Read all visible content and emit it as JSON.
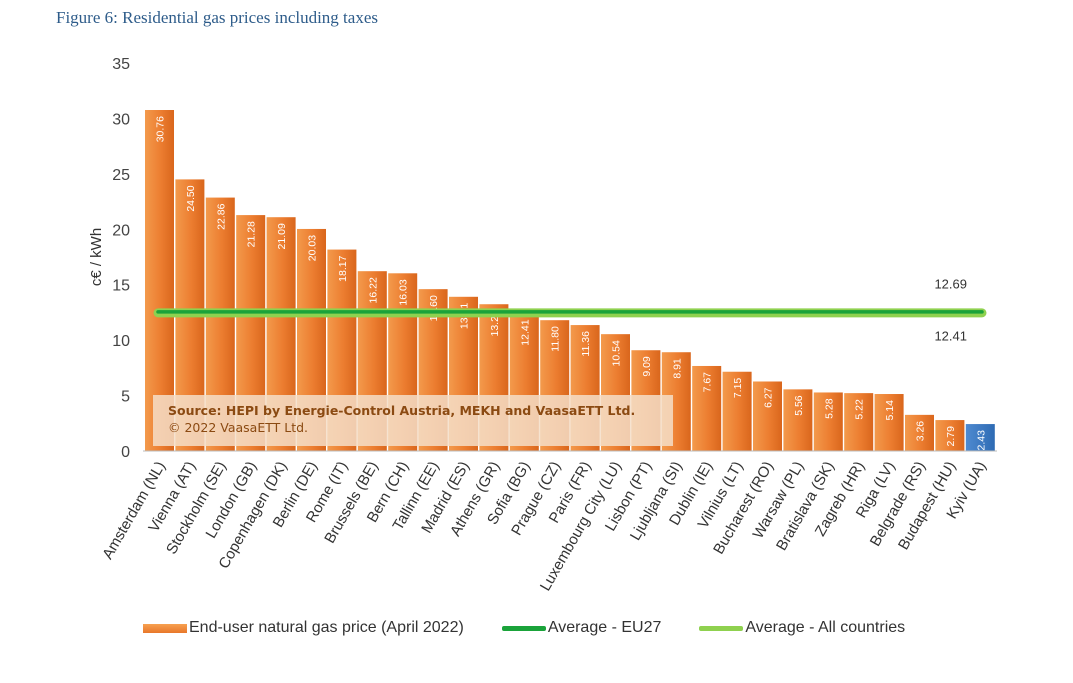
{
  "figure": {
    "title": "Figure 6: Residential gas prices including taxes",
    "source_line1": "Source: HEPI by Energie-Control Austria, MEKH and VaasaETT Ltd.",
    "source_line2": "© 2022 VaasaETT Ltd."
  },
  "colors": {
    "bar": "#ec7d30",
    "bar_highlight": "#2e6bb4",
    "avg_eu27": "#1aa33a",
    "avg_all": "#8fd14f"
  },
  "chart_data": {
    "type": "bar",
    "title": "",
    "xlabel": "",
    "ylabel": "c€ / kWh",
    "ylim": [
      0,
      35
    ],
    "yticks": [
      "0",
      "5",
      "10",
      "15",
      "20",
      "25",
      "30",
      "35"
    ],
    "grid": false,
    "categories": [
      "Amsterdam (NL)",
      "Vienna (AT)",
      "Stockholm (SE)",
      "London (GB)",
      "Copenhagen (DK)",
      "Berlin (DE)",
      "Rome (IT)",
      "Brussels (BE)",
      "Bern (CH)",
      "Tallinn (EE)",
      "Madrid (ES)",
      "Athens (GR)",
      "Sofia (BG)",
      "Prague (CZ)",
      "Paris (FR)",
      "Luxembourg City (LU)",
      "Lisbon (PT)",
      "Ljubljana (SI)",
      "Dublin (IE)",
      "Vilnius (LT)",
      "Bucharest (RO)",
      "Warsaw (PL)",
      "Bratislava (SK)",
      "Zagreb (HR)",
      "Riga (LV)",
      "Belgrade (RS)",
      "Budapest (HU)",
      "Kyiv (UA)"
    ],
    "series": [
      {
        "name": "End-user natural gas price (April 2022)",
        "values": [
          30.76,
          24.5,
          22.86,
          21.28,
          21.09,
          20.03,
          18.17,
          16.22,
          16.03,
          14.6,
          13.91,
          13.24,
          12.41,
          11.8,
          11.36,
          10.54,
          9.09,
          8.91,
          7.67,
          7.15,
          6.27,
          5.56,
          5.28,
          5.22,
          5.14,
          3.26,
          2.79,
          2.43
        ],
        "labels": [
          "30.76",
          "24.50",
          "22.86",
          "21.28",
          "21.09",
          "20.03",
          "18.17",
          "16.22",
          "16.03",
          "14.60",
          "13.91",
          "13.24",
          "12.41",
          "11.80",
          "11.36",
          "10.54",
          "9.09",
          "8.91",
          "7.67",
          "7.15",
          "6.27",
          "5.56",
          "5.28",
          "5.22",
          "5.14",
          "3.26",
          "2.79",
          "2.43"
        ]
      }
    ],
    "averages": [
      {
        "name": "Average - EU27",
        "value": 12.69,
        "label": "12.69"
      },
      {
        "name": "Average - All countries",
        "value": 12.41,
        "label": "12.41"
      }
    ],
    "legend_position": "bottom"
  }
}
